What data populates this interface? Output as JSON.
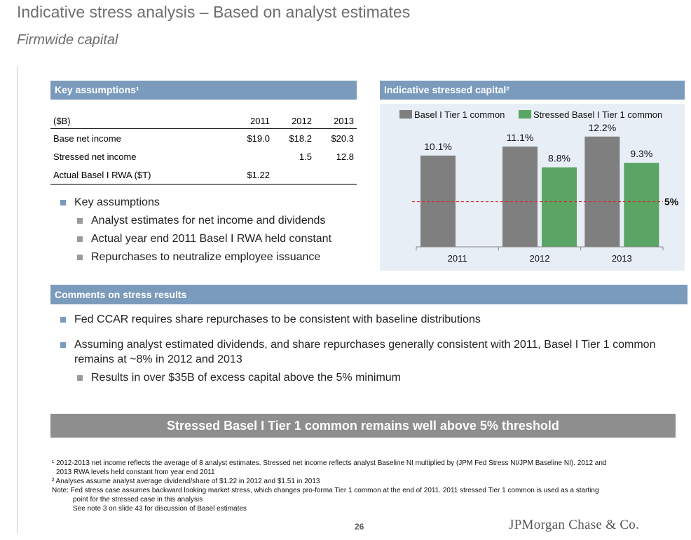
{
  "header": {
    "title": "Indicative stress analysis – Based on analyst estimates",
    "subtitle": "Firmwide capital"
  },
  "key_assumptions": {
    "header": "Key assumptions¹",
    "table": {
      "columns": [
        "($B)",
        "2011",
        "2012",
        "2013"
      ],
      "rows": [
        [
          "Base net income",
          "$19.0",
          "$18.2",
          "$20.3"
        ],
        [
          "Stressed net income",
          "",
          "1.5",
          "12.8"
        ],
        [
          "Actual Basel I RWA ($T)",
          "$1.22",
          "",
          ""
        ]
      ]
    },
    "bullet": "Key assumptions",
    "sub_bullets": [
      "Analyst estimates for net income and dividends",
      "Actual year end 2011 Basel I RWA held constant",
      "Repurchases to neutralize employee issuance"
    ]
  },
  "stressed_capital": {
    "header": "Indicative stressed capital²"
  },
  "chart_data": {
    "type": "bar",
    "categories": [
      "2011",
      "2012",
      "2013"
    ],
    "series": [
      {
        "name": "Basel I Tier 1 common",
        "values": [
          10.1,
          11.1,
          12.2
        ],
        "labels": [
          "10.1%",
          "11.1%",
          "12.2%"
        ],
        "color": "#7f7f7f"
      },
      {
        "name": "Stressed Basel I Tier 1 common",
        "values": [
          null,
          8.8,
          9.3
        ],
        "labels": [
          "",
          "8.8%",
          "9.3%"
        ],
        "color": "#5aa564"
      }
    ],
    "reference_line": {
      "value": 5,
      "label": "5%",
      "color": "#d62728"
    },
    "ylim": [
      0,
      13.5
    ],
    "legend": "top"
  },
  "comments": {
    "header": "Comments on stress results",
    "bullets": [
      "Fed CCAR requires share repurchases to be consistent with baseline distributions",
      "Assuming analyst estimated dividends, and share repurchases generally consistent with 2011, Basel I Tier 1 common",
      "remains at ~8% in 2012 and 2013"
    ],
    "sub_bullet": "Results in over $35B of excess capital above the 5% minimum"
  },
  "banner": "Stressed Basel I Tier 1 common remains well above 5% threshold",
  "footnotes": [
    "¹ 2012-2013 net income reflects the average of 8 analyst estimates. Stressed net income reflects analyst Baseline NI multiplied by (JPM Fed Stress NI/JPM Baseline NI). 2012 and",
    "2013 RWA levels held constant from year end 2011",
    "² Analyses assume analyst average dividend/share of $1.22 in 2012 and $1.51 in 2013",
    "Note: Fed stress case assumes backward looking market stress, which changes pro-forma Tier 1 common at the end of 2011. 2011 stressed Tier 1 common is used as a starting",
    "point for the stressed case in this analysis",
    "See note 3 on slide 43 for discussion of Basel estimates"
  ],
  "page_number": "26",
  "logo": "JPMorgan Chase & Co."
}
